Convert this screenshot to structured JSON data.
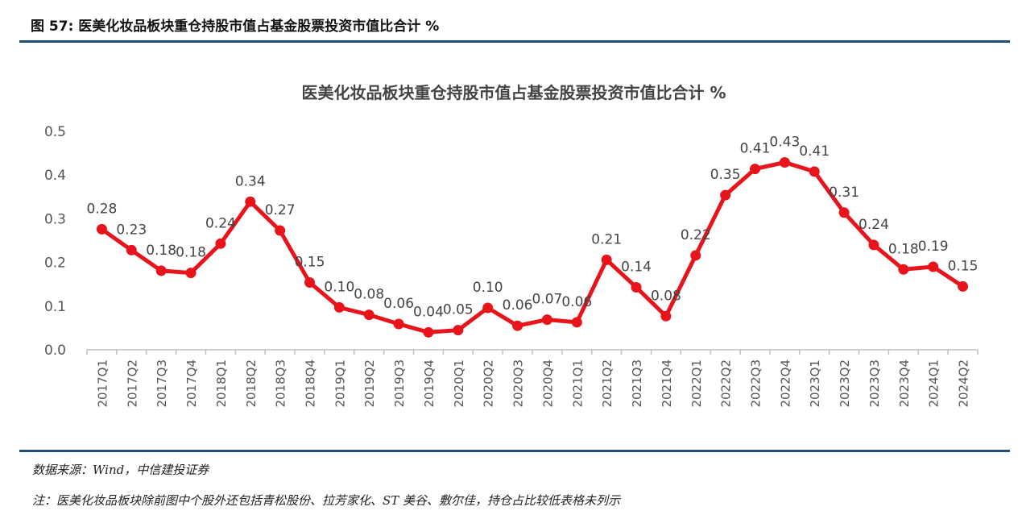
{
  "figure": {
    "title": "图 57:  医美化妆品板块重仓持股市值占基金股票投资市值比合计  %",
    "source": "数据来源：Wind，中信建投证券",
    "note": "注：医美化妆品板块除前图中个股外还包括青松股份、拉芳家化、ST 美谷、敷尔佳，持仓占比较低表格未列示"
  },
  "colors": {
    "series": "#e8141b",
    "rule": "#1f4e79",
    "axis": "#bfbfbf"
  },
  "chart_data": {
    "type": "line",
    "title": "医美化妆品板块重仓持股市值占基金股票投资市值比合计 %",
    "xlabel": "",
    "ylabel": "",
    "ylim": [
      0,
      0.5
    ],
    "yticks": [
      "0.0",
      "0.1",
      "0.2",
      "0.3",
      "0.4",
      "0.5"
    ],
    "grid": false,
    "legend": "none",
    "categories": [
      "2017Q1",
      "2017Q2",
      "2017Q3",
      "2017Q4",
      "2018Q1",
      "2018Q2",
      "2018Q3",
      "2018Q4",
      "2019Q1",
      "2019Q2",
      "2019Q3",
      "2019Q4",
      "2020Q1",
      "2020Q2",
      "2020Q3",
      "2020Q4",
      "2021Q1",
      "2021Q2",
      "2021Q3",
      "2021Q4",
      "2022Q1",
      "2022Q2",
      "2022Q3",
      "2022Q4",
      "2023Q1",
      "2023Q2",
      "2023Q3",
      "2023Q4",
      "2024Q1",
      "2024Q2"
    ],
    "series": [
      {
        "values": [
          0.276,
          0.228,
          0.181,
          0.176,
          0.243,
          0.339,
          0.273,
          0.154,
          0.097,
          0.08,
          0.059,
          0.04,
          0.045,
          0.096,
          0.055,
          0.069,
          0.063,
          0.206,
          0.143,
          0.077,
          0.216,
          0.354,
          0.414,
          0.429,
          0.408,
          0.314,
          0.24,
          0.184,
          0.19,
          0.145
        ],
        "labels": [
          "0.28",
          "0.23",
          "0.18",
          "0.18",
          "0.24",
          "0.34",
          "0.27",
          "0.15",
          "0.10",
          "0.08",
          "0.06",
          "0.04",
          "0.05",
          "0.10",
          "0.06",
          "0.07",
          "0.06",
          "0.21",
          "0.14",
          "0.08",
          "0.22",
          "0.35",
          "0.41",
          "0.43",
          "0.41",
          "0.31",
          "0.24",
          "0.18",
          "0.19",
          "0.15"
        ]
      }
    ]
  }
}
